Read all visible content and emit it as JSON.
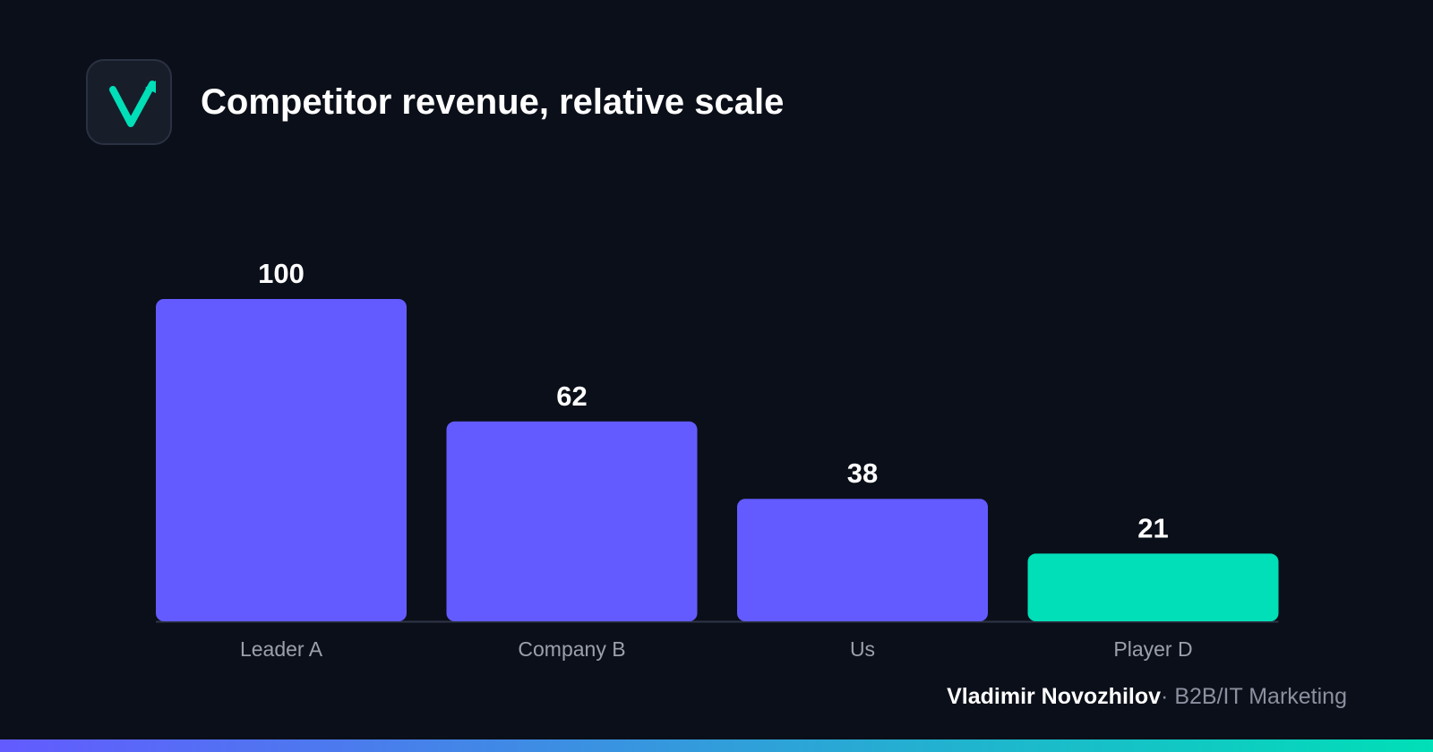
{
  "header": {
    "title": "Competitor revenue, relative scale",
    "logo_icon": "checkmark-arrow-icon"
  },
  "colors": {
    "background": "#0b0f19",
    "bar_default": "#635bff",
    "bar_highlight": "#00dfb7",
    "baseline": "#2f3548",
    "value_label": "#ffffff",
    "category_label": "#9ca0ad",
    "gradient_start": "#635bff",
    "gradient_end": "#00dfb7"
  },
  "chart_data": {
    "type": "bar",
    "title": "",
    "xlabel": "",
    "ylabel": "",
    "ylim": [
      0,
      100
    ],
    "categories": [
      "Leader A",
      "Company B",
      "Us",
      "Player D"
    ],
    "values": [
      100,
      62,
      38,
      21
    ],
    "highlight_index": 3,
    "grid": false,
    "legend": false
  },
  "footer": {
    "author": "Vladimir Novozhilov",
    "separator": "·",
    "role": "B2B/IT Marketing"
  }
}
